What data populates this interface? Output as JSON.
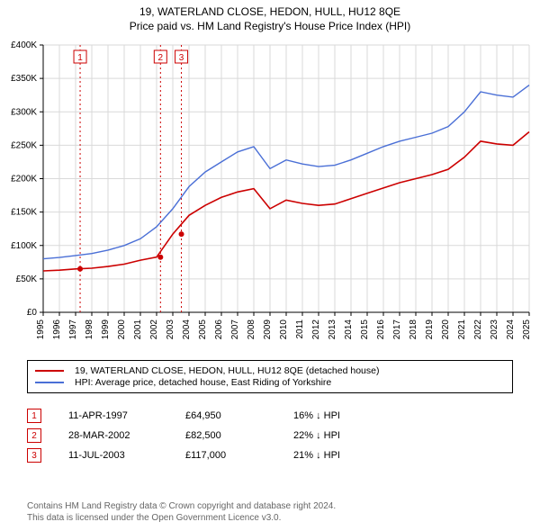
{
  "title_line1": "19, WATERLAND CLOSE, HEDON, HULL, HU12 8QE",
  "title_line2": "Price paid vs. HM Land Registry's House Price Index (HPI)",
  "chart": {
    "type": "line",
    "background_color": "#ffffff",
    "grid_color": "#d9d9d9",
    "axis_color": "#000000",
    "x_years": [
      1995,
      1996,
      1997,
      1998,
      1999,
      2000,
      2001,
      2002,
      2003,
      2004,
      2005,
      2006,
      2007,
      2008,
      2009,
      2010,
      2011,
      2012,
      2013,
      2014,
      2015,
      2016,
      2017,
      2018,
      2019,
      2020,
      2021,
      2022,
      2023,
      2024,
      2025
    ],
    "ylim": [
      0,
      400000
    ],
    "ytick_step": 50000,
    "ytick_labels": [
      "£0",
      "£50K",
      "£100K",
      "£150K",
      "£200K",
      "£250K",
      "£300K",
      "£350K",
      "£400K"
    ],
    "series": [
      {
        "name": "hpi",
        "color": "#4a6fd6",
        "line_width": 1.4,
        "values": [
          80000,
          82000,
          85000,
          88000,
          93000,
          100000,
          110000,
          128000,
          155000,
          188000,
          210000,
          225000,
          240000,
          248000,
          215000,
          228000,
          222000,
          218000,
          220000,
          228000,
          238000,
          248000,
          256000,
          262000,
          268000,
          278000,
          300000,
          330000,
          325000,
          322000,
          340000
        ]
      },
      {
        "name": "property",
        "color": "#cc0000",
        "line_width": 1.6,
        "values": [
          62000,
          63000,
          64950,
          66000,
          68500,
          72000,
          78000,
          82500,
          117000,
          145000,
          160000,
          172000,
          180000,
          185000,
          155000,
          168000,
          163000,
          160000,
          162000,
          170000,
          178000,
          186000,
          194000,
          200000,
          206000,
          214000,
          232000,
          256000,
          252000,
          250000,
          270000
        ]
      }
    ],
    "sale_markers": [
      {
        "n": "1",
        "year": 1997.28,
        "price": 64950
      },
      {
        "n": "2",
        "year": 2002.24,
        "price": 82500
      },
      {
        "n": "3",
        "year": 2003.53,
        "price": 117000
      }
    ],
    "marker_color": "#cc0000",
    "marker_dash_color": "#cc0000",
    "tick_label_fontsize": 10
  },
  "legend": {
    "property_label": "19, WATERLAND CLOSE, HEDON, HULL, HU12 8QE (detached house)",
    "hpi_label": "HPI: Average price, detached house, East Riding of Yorkshire",
    "property_color": "#cc0000",
    "hpi_color": "#4a6fd6"
  },
  "sales": [
    {
      "n": "1",
      "date": "11-APR-1997",
      "price": "£64,950",
      "pct": "16% ↓ HPI"
    },
    {
      "n": "2",
      "date": "28-MAR-2002",
      "price": "£82,500",
      "pct": "22% ↓ HPI"
    },
    {
      "n": "3",
      "date": "11-JUL-2003",
      "price": "£117,000",
      "pct": "21% ↓ HPI"
    }
  ],
  "footer_line1": "Contains HM Land Registry data © Crown copyright and database right 2024.",
  "footer_line2": "This data is licensed under the Open Government Licence v3.0."
}
